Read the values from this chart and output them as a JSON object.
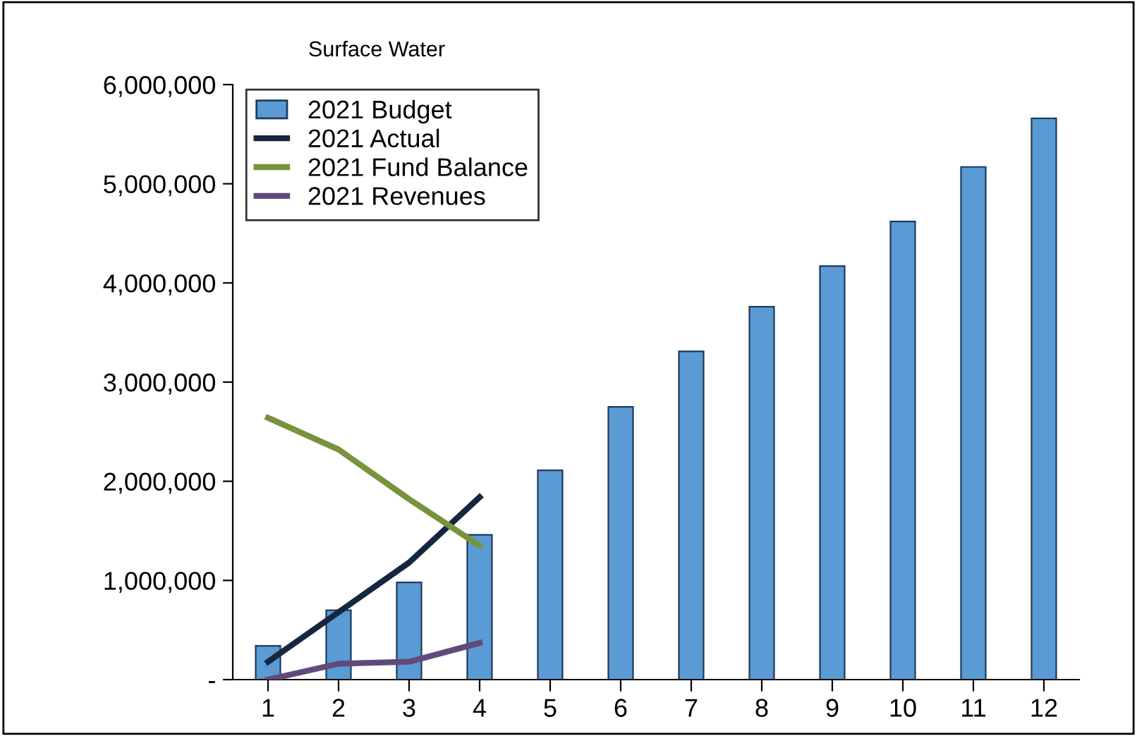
{
  "chart_data": {
    "type": "bar",
    "title": "Surface Water",
    "categories": [
      "1",
      "2",
      "3",
      "4",
      "5",
      "6",
      "7",
      "8",
      "9",
      "10",
      "11",
      "12"
    ],
    "series": [
      {
        "name": "2021 Budget",
        "color": "#5b9bd5",
        "values": [
          340000,
          700000,
          980000,
          1460000,
          2110000,
          2750000,
          3310000,
          3760000,
          4170000,
          4620000,
          5170000,
          5660000
        ]
      },
      {
        "name": "2021 Actual",
        "type": "line",
        "color": "#17263f",
        "values": [
          180000,
          680000,
          1180000,
          1840000,
          null,
          null,
          null,
          null,
          null,
          null,
          null,
          null
        ]
      },
      {
        "name": "2021 Fund Balance",
        "type": "line",
        "color": "#77933c",
        "values": [
          2640000,
          2320000,
          1820000,
          1350000,
          null,
          null,
          null,
          null,
          null,
          null,
          null,
          null
        ]
      },
      {
        "name": "2021 Revenues",
        "type": "line",
        "color": "#604a7b",
        "values": [
          0,
          160000,
          180000,
          370000,
          null,
          null,
          null,
          null,
          null,
          null,
          null,
          null
        ]
      }
    ],
    "ylim": [
      0,
      6000000
    ],
    "yticks": [
      {
        "value": 0,
        "label": "-"
      },
      {
        "value": 1000000,
        "label": "1,000,000"
      },
      {
        "value": 2000000,
        "label": "2,000,000"
      },
      {
        "value": 3000000,
        "label": "3,000,000"
      },
      {
        "value": 4000000,
        "label": "4,000,000"
      },
      {
        "value": 5000000,
        "label": "5,000,000"
      },
      {
        "value": 6000000,
        "label": "6,000,000"
      }
    ],
    "grid": false,
    "legend": "top left",
    "line_style": "solid",
    "marker": "none"
  }
}
